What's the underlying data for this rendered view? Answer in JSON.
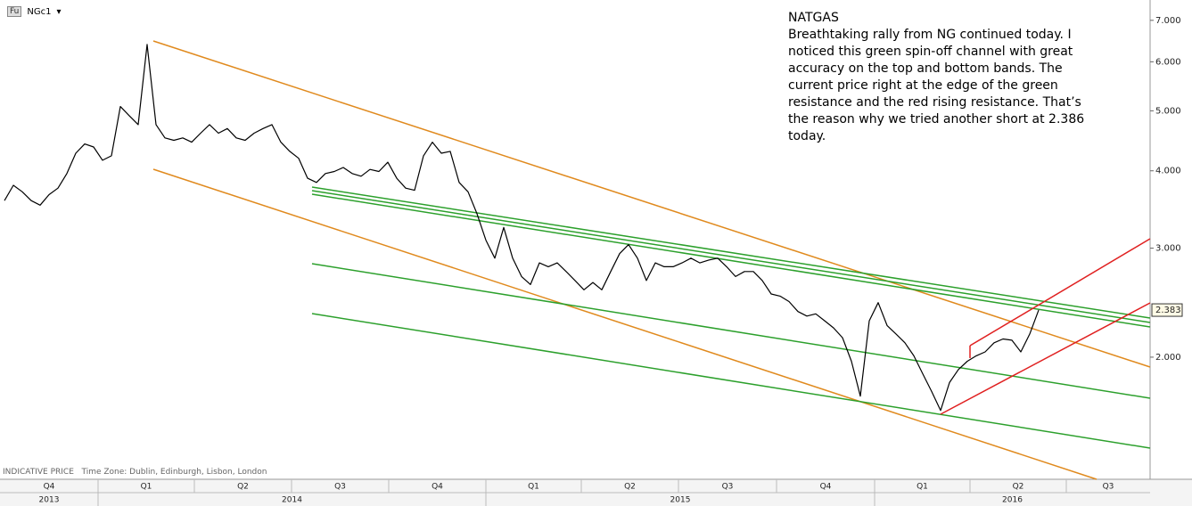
{
  "toolbar": {
    "icon": "Fu",
    "symbol": "NGc1"
  },
  "annotation": {
    "title": "NATGAS",
    "lines": [
      "Breathtaking rally from NG continued today. I",
      "noticed this green spin-off channel with great",
      "accuracy on the top and bottom bands. The",
      "current price right at the edge of the green",
      "resistance and the red rising resistance. That’s",
      "the reason why we tried another short at 2.386",
      "today."
    ]
  },
  "footer": {
    "indicative": "INDICATIVE PRICE",
    "timezone": "Time Zone: Dublin, Edinburgh, Lisbon, London"
  },
  "chart_data": {
    "type": "line",
    "color": "#000000",
    "log_scale": true,
    "grid": false,
    "values": [
      3.58,
      3.79,
      3.7,
      3.58,
      3.52,
      3.66,
      3.75,
      3.96,
      4.27,
      4.42,
      4.37,
      4.16,
      4.23,
      5.08,
      4.91,
      4.75,
      6.4,
      4.75,
      4.52,
      4.48,
      4.52,
      4.45,
      4.6,
      4.75,
      4.6,
      4.68,
      4.52,
      4.48,
      4.6,
      4.68,
      4.75,
      4.45,
      4.3,
      4.19,
      3.89,
      3.83,
      3.96,
      3.99,
      4.05,
      3.96,
      3.92,
      4.02,
      3.99,
      4.13,
      3.89,
      3.75,
      3.72,
      4.23,
      4.45,
      4.27,
      4.3,
      3.83,
      3.7,
      3.41,
      3.09,
      2.89,
      3.24,
      2.89,
      2.7,
      2.62,
      2.84,
      2.8,
      2.84,
      2.75,
      2.66,
      2.57,
      2.64,
      2.57,
      2.75,
      2.94,
      3.04,
      2.89,
      2.66,
      2.84,
      2.8,
      2.8,
      2.84,
      2.89,
      2.84,
      2.87,
      2.89,
      2.8,
      2.7,
      2.75,
      2.75,
      2.66,
      2.53,
      2.51,
      2.46,
      2.37,
      2.33,
      2.35,
      2.29,
      2.23,
      2.15,
      1.97,
      1.73,
      2.29,
      2.45,
      2.25,
      2.18,
      2.11,
      2.01,
      1.88,
      1.76,
      1.64,
      1.82,
      1.91,
      1.97,
      2.01,
      2.04,
      2.11,
      2.14,
      2.13,
      2.04,
      2.18,
      2.383
    ],
    "ylim": [
      1.27,
      7.55
    ],
    "yticks": [
      {
        "value": 7,
        "label": "7.000"
      },
      {
        "value": 6,
        "label": "6.000"
      },
      {
        "value": 5,
        "label": "5.000"
      },
      {
        "value": 4,
        "label": "4.000"
      },
      {
        "value": 3,
        "label": "3.000"
      },
      {
        "value": 2,
        "label": "2.000"
      }
    ],
    "price_tag": {
      "value": 2.383,
      "label": "2.383"
    },
    "quarters": [
      "Q4",
      "Q1",
      "Q2",
      "Q3",
      "Q4",
      "Q1",
      "Q2",
      "Q3",
      "Q4",
      "Q1",
      "Q2",
      "Q3"
    ],
    "years": [
      "2013",
      "2014",
      "2015",
      "2016"
    ]
  }
}
